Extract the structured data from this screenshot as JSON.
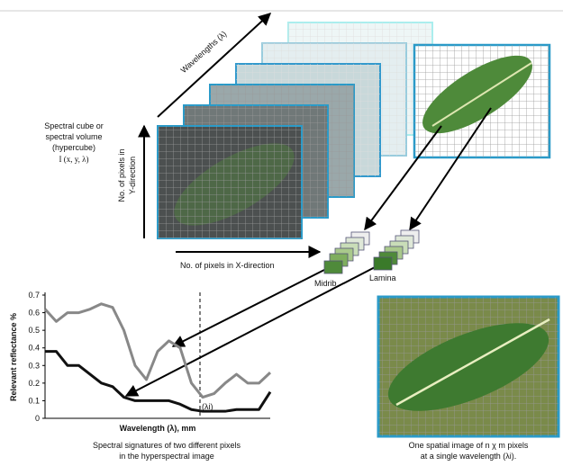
{
  "cube": {
    "wavelengths": "Wavelengths (λ)",
    "title_lines": [
      "Spectral cube or",
      "spectral volume",
      "(hypercube)",
      "I (x, y, λ)"
    ],
    "y_direction_lines": [
      "No. of pixels in",
      "Y-direction"
    ],
    "x_direction": "No. of pixels in X-direction"
  },
  "pixels": {
    "midrib": "Midrib",
    "lamina": "Lamina"
  },
  "chart_data": {
    "type": "line",
    "y_label": "Relevant reflectance %",
    "x_label": "Wavelength (λ), mm",
    "marker_label": "(λi)",
    "ylim": [
      0,
      0.7
    ],
    "yticks": [
      0,
      0.1,
      0.2,
      0.3,
      0.4,
      0.5,
      0.6,
      0.7
    ],
    "series": [
      {
        "color": "#888888",
        "values": [
          0.62,
          0.55,
          0.6,
          0.6,
          0.62,
          0.65,
          0.63,
          0.5,
          0.3,
          0.22,
          0.38,
          0.44,
          0.4,
          0.2,
          0.12,
          0.14,
          0.2,
          0.25,
          0.2,
          0.2,
          0.26
        ]
      },
      {
        "color": "#111111",
        "values": [
          0.38,
          0.38,
          0.3,
          0.3,
          0.25,
          0.2,
          0.18,
          0.12,
          0.1,
          0.1,
          0.1,
          0.1,
          0.08,
          0.05,
          0.04,
          0.04,
          0.04,
          0.05,
          0.05,
          0.05,
          0.15
        ]
      }
    ]
  },
  "captions": {
    "left": [
      "Spectral signatures of two different pixels",
      "in the hyperspectral image"
    ],
    "right": [
      "One spatial image of n χ m pixels",
      "at a single wavelength (λi)."
    ]
  }
}
